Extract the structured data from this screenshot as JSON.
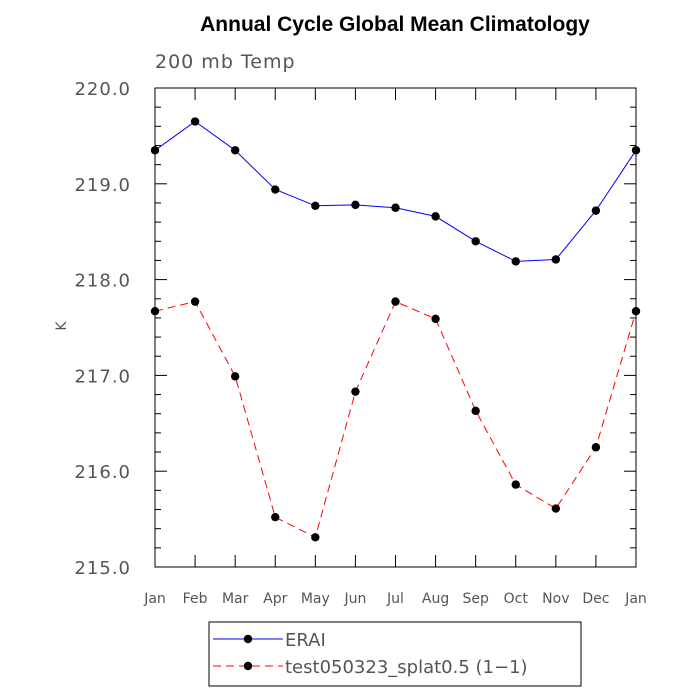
{
  "chart_data": {
    "type": "line",
    "title": "Annual Cycle Global Mean Climatology",
    "subtitle": "200 mb Temp",
    "xlabel": "",
    "ylabel": "K",
    "ylim": [
      215.0,
      220.0
    ],
    "yticks": [
      "215.0",
      "216.0",
      "217.0",
      "218.0",
      "219.0",
      "220.0"
    ],
    "categories": [
      "Jan",
      "Feb",
      "Mar",
      "Apr",
      "May",
      "Jun",
      "Jul",
      "Aug",
      "Sep",
      "Oct",
      "Nov",
      "Dec",
      "Jan"
    ],
    "grid": false,
    "legend_position": "bottom",
    "series": [
      {
        "name": "ERAI",
        "color": "#0000ff",
        "dash": "solid",
        "values": [
          219.35,
          219.65,
          219.35,
          218.94,
          218.77,
          218.78,
          218.75,
          218.66,
          218.4,
          218.19,
          218.21,
          218.72,
          219.35
        ]
      },
      {
        "name": "test050323_splat0.5 (1−1)",
        "color": "#ff0000",
        "dash": "dashed",
        "values": [
          217.67,
          217.77,
          216.99,
          215.52,
          215.31,
          216.83,
          217.77,
          217.59,
          216.63,
          215.86,
          215.61,
          216.25,
          217.67
        ]
      }
    ]
  }
}
